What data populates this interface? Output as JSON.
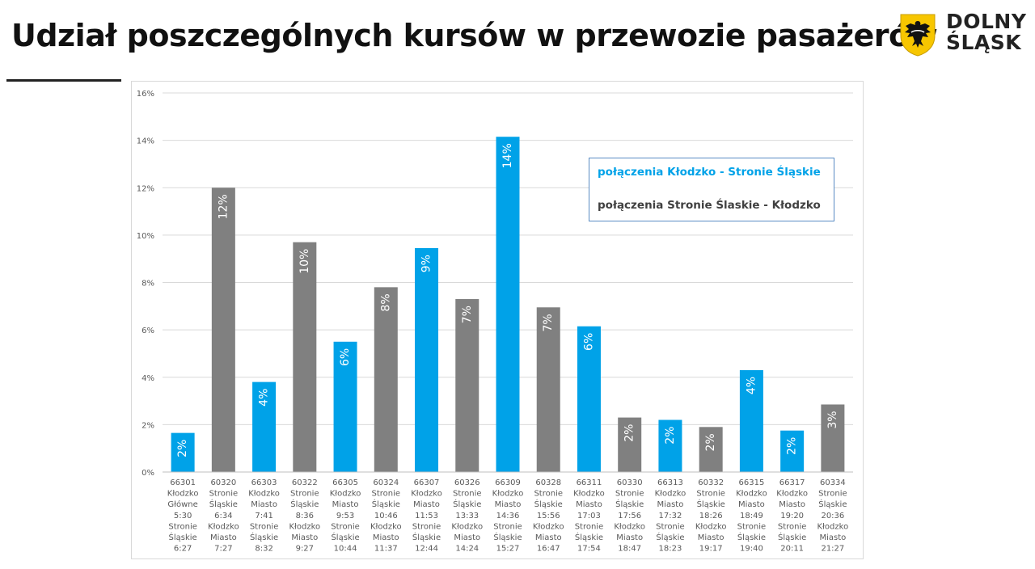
{
  "header": {
    "title": "Udział poszczególnych kursów w przewozie pasażerów",
    "logo_line1": "DOLNY",
    "logo_line2": "ŚLĄSK"
  },
  "colors": {
    "blue": "#00a2e8",
    "gray": "#808080",
    "grid": "#d9d9d9",
    "axis_text": "#595959",
    "legend_gray_text": "#404040"
  },
  "chart_data": {
    "type": "bar",
    "ylim": [
      0,
      16
    ],
    "y_ticks": [
      {
        "value": 0,
        "label": "0%"
      },
      {
        "value": 2,
        "label": "2%"
      },
      {
        "value": 4,
        "label": "4%"
      },
      {
        "value": 6,
        "label": "6%"
      },
      {
        "value": 8,
        "label": "8%"
      },
      {
        "value": 10,
        "label": "10%"
      },
      {
        "value": 12,
        "label": "12%"
      },
      {
        "value": 14,
        "label": "14%"
      },
      {
        "value": 16,
        "label": "16%"
      }
    ],
    "grid": true,
    "legend": {
      "placement": "top-right",
      "entries": [
        {
          "name": "połączenia Kłodzko - Stronie Śląskie",
          "group": "ks"
        },
        {
          "name": "połączenia Stronie Ślaskie - Kłodzko",
          "group": "sk"
        }
      ]
    },
    "bars": [
      {
        "group": "ks",
        "value": 1.65,
        "data_label": "2%",
        "category": [
          "66301",
          "Kłodzko",
          "Główne",
          "5:30",
          "Stronie",
          "Śląskie",
          "6:27"
        ]
      },
      {
        "group": "sk",
        "value": 12.0,
        "data_label": "12%",
        "category": [
          "60320",
          "Stronie",
          "Śląskie",
          "6:34",
          "Kłodzko",
          "Miasto",
          "7:27"
        ]
      },
      {
        "group": "ks",
        "value": 3.8,
        "data_label": "4%",
        "category": [
          "66303",
          "Kłodzko",
          "Miasto",
          "7:41",
          "Stronie",
          "Śląskie",
          "8:32"
        ]
      },
      {
        "group": "sk",
        "value": 9.7,
        "data_label": "10%",
        "category": [
          "60322",
          "Stronie",
          "Śląskie",
          "8:36",
          "Kłodzko",
          "Miasto",
          "9:27"
        ]
      },
      {
        "group": "ks",
        "value": 5.5,
        "data_label": "6%",
        "category": [
          "66305",
          "Kłodzko",
          "Miasto",
          "9:53",
          "Stronie",
          "Śląskie",
          "10:44"
        ]
      },
      {
        "group": "sk",
        "value": 7.8,
        "data_label": "8%",
        "category": [
          "60324",
          "Stronie",
          "Śląskie",
          "10:46",
          "Kłodzko",
          "Miasto",
          "11:37"
        ]
      },
      {
        "group": "ks",
        "value": 9.45,
        "data_label": "9%",
        "category": [
          "66307",
          "Kłodzko",
          "Miasto",
          "11:53",
          "Stronie",
          "Śląskie",
          "12:44"
        ]
      },
      {
        "group": "sk",
        "value": 7.3,
        "data_label": "7%",
        "category": [
          "60326",
          "Stronie",
          "Śląskie",
          "13:33",
          "Kłodzko",
          "Miasto",
          "14:24"
        ]
      },
      {
        "group": "ks",
        "value": 14.15,
        "data_label": "14%",
        "category": [
          "66309",
          "Kłodzko",
          "Miasto",
          "14:36",
          "Stronie",
          "Śląskie",
          "15:27"
        ]
      },
      {
        "group": "sk",
        "value": 6.95,
        "data_label": "7%",
        "category": [
          "60328",
          "Stronie",
          "Śląskie",
          "15:56",
          "Kłodzko",
          "Miasto",
          "16:47"
        ]
      },
      {
        "group": "ks",
        "value": 6.15,
        "data_label": "6%",
        "category": [
          "66311",
          "Kłodzko",
          "Miasto",
          "17:03",
          "Stronie",
          "Śląskie",
          "17:54"
        ]
      },
      {
        "group": "sk",
        "value": 2.3,
        "data_label": "2%",
        "category": [
          "60330",
          "Stronie",
          "Śląskie",
          "17:56",
          "Kłodzko",
          "Miasto",
          "18:47"
        ]
      },
      {
        "group": "ks",
        "value": 2.2,
        "data_label": "2%",
        "category": [
          "66313",
          "Kłodzko",
          "Miasto",
          "17:32",
          "Stronie",
          "Śląskie",
          "18:23"
        ]
      },
      {
        "group": "sk",
        "value": 1.9,
        "data_label": "2%",
        "category": [
          "60332",
          "Stronie",
          "Śląskie",
          "18:26",
          "Kłodzko",
          "Miasto",
          "19:17"
        ]
      },
      {
        "group": "ks",
        "value": 4.3,
        "data_label": "4%",
        "category": [
          "66315",
          "Kłodzko",
          "Miasto",
          "18:49",
          "Stronie",
          "Śląskie",
          "19:40"
        ]
      },
      {
        "group": "ks",
        "value": 1.75,
        "data_label": "2%",
        "category": [
          "66317",
          "Kłodzko",
          "Miasto",
          "19:20",
          "Stronie",
          "Śląskie",
          "20:11"
        ]
      },
      {
        "group": "sk",
        "value": 2.85,
        "data_label": "3%",
        "category": [
          "60334",
          "Stronie",
          "Śląskie",
          "20:36",
          "Kłodzko",
          "Miasto",
          "21:27"
        ]
      }
    ]
  }
}
